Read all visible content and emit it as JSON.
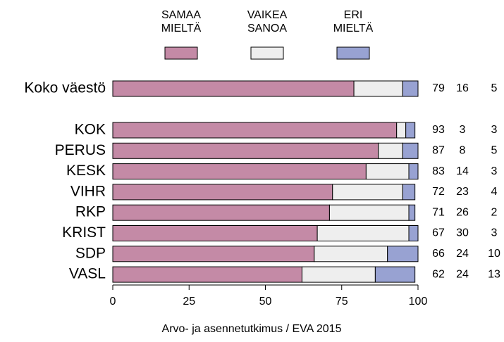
{
  "chart_data": {
    "type": "stacked_bar",
    "orientation": "horizontal",
    "categories": [
      "Koko väestö",
      "KOK",
      "PERUS",
      "KESK",
      "VIHR",
      "RKP",
      "KRIST",
      "SDP",
      "VASL"
    ],
    "series": [
      {
        "name": "SAMAA\nMIELTÄ",
        "color": "#c48aa6",
        "values": [
          79,
          93,
          87,
          83,
          72,
          71,
          67,
          66,
          62
        ]
      },
      {
        "name": "VAIKEA\nSANOA",
        "color": "#eeeeee",
        "values": [
          16,
          3,
          8,
          14,
          23,
          26,
          30,
          24,
          24
        ]
      },
      {
        "name": "ERI\nMIELTÄ",
        "color": "#98a2d2",
        "values": [
          5,
          3,
          5,
          3,
          4,
          2,
          3,
          10,
          13
        ]
      }
    ],
    "xlim": [
      0,
      100
    ],
    "xticks": [
      0,
      25,
      50,
      75,
      100
    ],
    "caption": "Arvo- ja asennetutkimus / EVA 2015"
  }
}
